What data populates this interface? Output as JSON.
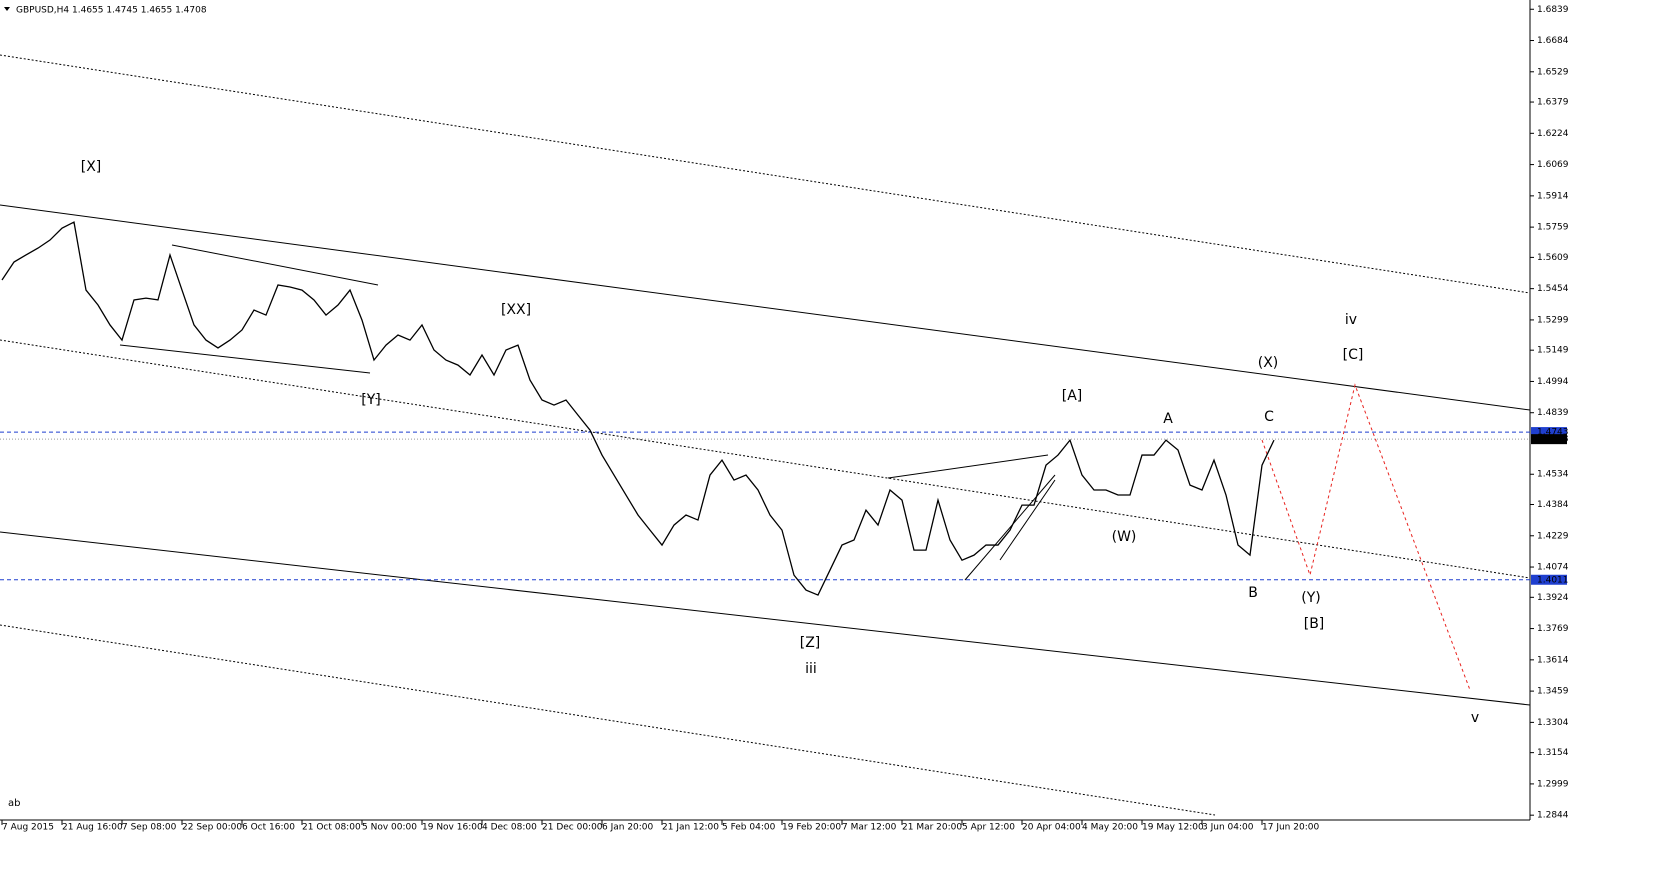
{
  "chart_data": {
    "type": "line",
    "header": "GBPUSD,H4  1.4655 1.4745 1.4655 1.4708",
    "footer_text": "ab",
    "color": "#000000",
    "ylim": [
      1.283,
      1.687
    ],
    "yticks": [
      1.6839,
      1.6684,
      1.6529,
      1.6379,
      1.6224,
      1.6069,
      1.5914,
      1.5759,
      1.5609,
      1.5454,
      1.5299,
      1.5149,
      1.4994,
      1.4839,
      1.4534,
      1.4384,
      1.4229,
      1.4074,
      1.3924,
      1.3769,
      1.3614,
      1.3459,
      1.3304,
      1.3154,
      1.2999,
      1.2844
    ],
    "xtick_labels": [
      "7 Aug 2015",
      "21 Aug 16:00",
      "7 Sep 08:00",
      "22 Sep 00:00",
      "6 Oct 16:00",
      "21 Oct 08:00",
      "5 Nov 00:00",
      "19 Nov 16:00",
      "4 Dec 08:00",
      "21 Dec 00:00",
      "6 Jan 20:00",
      "21 Jan 12:00",
      "5 Feb 04:00",
      "19 Feb 20:00",
      "7 Mar 12:00",
      "21 Mar 20:00",
      "5 Apr 12:00",
      "20 Apr 04:00",
      "4 May 20:00",
      "19 May 12:00",
      "3 Jun 04:00",
      "17 Jun 20:00"
    ],
    "values": [
      1.5497,
      1.5586,
      1.5621,
      1.5655,
      1.5695,
      1.5754,
      1.5784,
      1.5447,
      1.5373,
      1.5274,
      1.5199,
      1.5398,
      1.5407,
      1.5398,
      1.5621,
      1.5447,
      1.5274,
      1.5199,
      1.516,
      1.5199,
      1.5249,
      1.5348,
      1.5323,
      1.5472,
      1.5462,
      1.5447,
      1.5398,
      1.5323,
      1.5373,
      1.5447,
      1.5298,
      1.51,
      1.5174,
      1.5224,
      1.5199,
      1.5274,
      1.515,
      1.51,
      1.5075,
      1.5026,
      1.5125,
      1.5026,
      1.515,
      1.5174,
      1.5001,
      1.4902,
      1.4877,
      1.4902,
      1.4827,
      1.4753,
      1.4629,
      1.453,
      1.4431,
      1.4332,
      1.4257,
      1.4183,
      1.4282,
      1.4332,
      1.4307,
      1.453,
      1.4604,
      1.4505,
      1.453,
      1.4456,
      1.4332,
      1.4257,
      1.4034,
      1.396,
      1.3935,
      1.4059,
      1.4183,
      1.4208,
      1.4356,
      1.4282,
      1.4456,
      1.4406,
      1.4158,
      1.4158,
      1.4406,
      1.4208,
      1.4108,
      1.4133,
      1.4183,
      1.4183,
      1.4257,
      1.4381,
      1.4381,
      1.4579,
      1.4629,
      1.4703,
      1.453,
      1.4456,
      1.4456,
      1.4431,
      1.4431,
      1.4629,
      1.4629,
      1.4703,
      1.4654,
      1.448,
      1.4456,
      1.4604,
      1.4431,
      1.4183,
      1.4133,
      1.4579,
      1.4703
    ],
    "hlines": [
      {
        "value": 1.4743,
        "color": "#1f3fcf",
        "style": "dashed"
      },
      {
        "value": 1.4708,
        "color": "#999999",
        "style": "dotted"
      },
      {
        "value": 1.4011,
        "color": "#1f3fcf",
        "style": "dashed"
      }
    ],
    "annotations": [
      {
        "text": "[X]",
        "color": "#e8231f"
      },
      {
        "text": "[Y]",
        "color": "#e8231f"
      },
      {
        "text": "[XX]",
        "color": "#e8231f"
      },
      {
        "text": "[Z]",
        "color": "#e8231f"
      },
      {
        "text": "iii",
        "color": "#1a1adc"
      },
      {
        "text": "[A]",
        "color": "#e8231f"
      },
      {
        "text": "(W)",
        "color": "#2e8b2e"
      },
      {
        "text": "A",
        "color": "#1a1adc"
      },
      {
        "text": "(X)",
        "color": "#2e8b2e"
      },
      {
        "text": "C",
        "color": "#1a1adc"
      },
      {
        "text": "B",
        "color": "#1a1adc"
      },
      {
        "text": "(Y)",
        "color": "#2e8b2e"
      },
      {
        "text": "[B]",
        "color": "#e8231f"
      },
      {
        "text": "iv",
        "color": "#1a1adc"
      },
      {
        "text": "[C]",
        "color": "#e8231f"
      },
      {
        "text": "v",
        "color": "#1a1adc"
      }
    ]
  }
}
